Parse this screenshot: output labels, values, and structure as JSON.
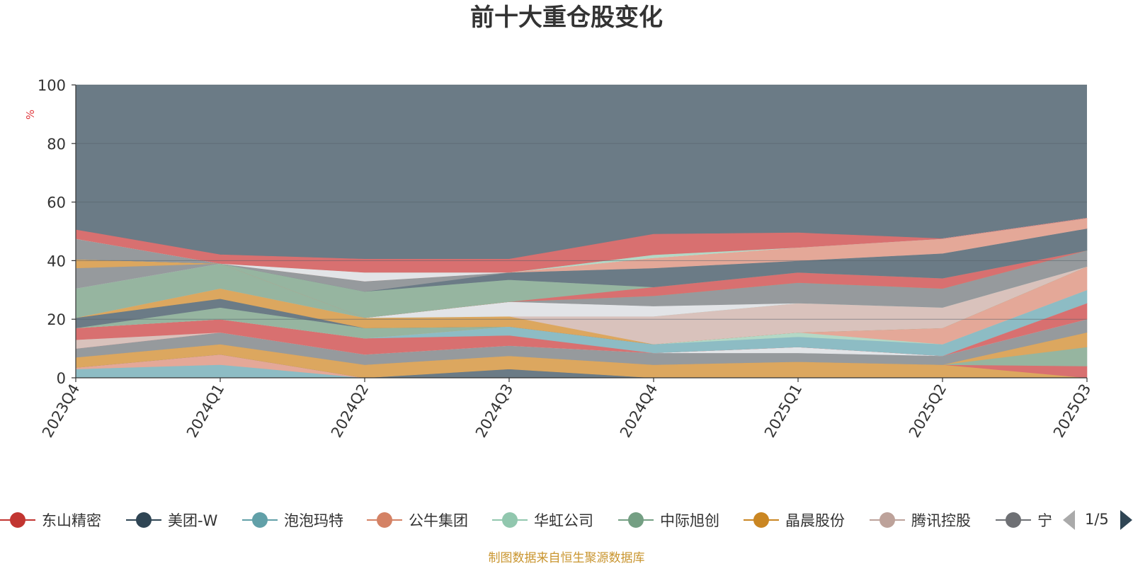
{
  "title": "前十大重仓股变化",
  "footer_source": "制图数据来自恒生聚源数据库",
  "legend_page": "1/5",
  "chart_data": {
    "type": "area",
    "stacked": true,
    "title": "前十大重仓股变化",
    "ylabel": "%",
    "ylim": [
      0,
      100
    ],
    "yticks": [
      0,
      20,
      40,
      60,
      80,
      100
    ],
    "grid": true,
    "legend_position": "bottom",
    "x": [
      "2023Q4",
      "2024Q1",
      "2024Q2",
      "2024Q3",
      "2024Q4",
      "2025Q1",
      "2025Q2",
      "2025Q3"
    ],
    "background_color": "#6b7b86",
    "legend": [
      {
        "name": "东山精密",
        "color": "#c23531"
      },
      {
        "name": "美团-W",
        "color": "#2f4554"
      },
      {
        "name": "泡泡玛特",
        "color": "#61a0a8"
      },
      {
        "name": "公牛集团",
        "color": "#d48265"
      },
      {
        "name": "华虹公司",
        "color": "#91c7ae"
      },
      {
        "name": "中际旭创",
        "color": "#749f83"
      },
      {
        "name": "晶晨股份",
        "color": "#ca8622"
      },
      {
        "name": "腾讯控股",
        "color": "#bda29a"
      },
      {
        "name": "宁",
        "color": "#6e7074"
      }
    ],
    "series": [
      {
        "color": "#8dbcc4",
        "values": [
          3,
          4.5,
          0,
          0,
          0,
          0,
          0,
          0
        ]
      },
      {
        "color": "#e4a898",
        "values": [
          0.5,
          3.5,
          0,
          0,
          0,
          0,
          0,
          0
        ]
      },
      {
        "color": "#6b7b86",
        "values": [
          0,
          0,
          0,
          3,
          0,
          0,
          0,
          0
        ]
      },
      {
        "color": "#dca75f",
        "values": [
          3.5,
          3.5,
          4.5,
          4.5,
          4.5,
          5.5,
          4.5,
          0
        ]
      },
      {
        "color": "#d87070",
        "values": [
          0,
          0,
          0,
          0,
          0,
          0,
          0,
          4
        ]
      },
      {
        "color": "#96b5a0",
        "values": [
          0,
          0,
          0,
          0,
          0,
          0,
          0,
          6.5
        ]
      },
      {
        "color": "#dca75f",
        "values": [
          0,
          0,
          0,
          0,
          0,
          0,
          0,
          5
        ]
      },
      {
        "color": "#969a9d",
        "values": [
          3,
          4,
          3.5,
          3.5,
          4,
          3,
          3,
          4.5
        ]
      },
      {
        "color": "#e2e4e7",
        "values": [
          0,
          0,
          0,
          0,
          0,
          2,
          0,
          0
        ]
      },
      {
        "color": "#d87070",
        "values": [
          0,
          0,
          0,
          0,
          0,
          0,
          0,
          5.5
        ]
      },
      {
        "color": "#d9c2bc",
        "values": [
          3,
          0,
          0,
          0,
          0,
          0,
          0,
          0
        ]
      },
      {
        "color": "#d87070",
        "values": [
          4,
          4.5,
          5.5,
          3.5,
          0,
          0,
          0,
          0
        ]
      },
      {
        "color": "#8dbcc4",
        "values": [
          0,
          0,
          0,
          3,
          3,
          3.5,
          4,
          4.5
        ]
      },
      {
        "color": "#b3d8c6",
        "values": [
          0,
          0,
          0,
          0,
          0,
          1.5,
          0,
          0
        ]
      },
      {
        "color": "#e4a898",
        "values": [
          0,
          0,
          0,
          0,
          0,
          0,
          5.5,
          8
        ]
      },
      {
        "color": "#96b5a0",
        "values": [
          0,
          4,
          3.5,
          0,
          0,
          0,
          0,
          0
        ]
      },
      {
        "color": "#6b7b86",
        "values": [
          3.5,
          3,
          0,
          0,
          0,
          0,
          0,
          0
        ]
      },
      {
        "color": "#dca75f",
        "values": [
          0,
          3.5,
          3.5,
          3.5,
          0,
          0,
          0,
          0
        ]
      },
      {
        "color": "#d9c2bc",
        "values": [
          0,
          0,
          0,
          0,
          9.5,
          10,
          7,
          0
        ]
      },
      {
        "color": "#96b5a0",
        "values": [
          10,
          8.5,
          0,
          0,
          0,
          0,
          0,
          0
        ]
      },
      {
        "color": "#e2e4e7",
        "values": [
          0,
          0,
          0,
          5,
          3.5,
          0,
          0,
          0
        ]
      },
      {
        "color": "#969a9d",
        "values": [
          7,
          0,
          0,
          0,
          3.5,
          7,
          6.5,
          5.5
        ]
      },
      {
        "color": "#dca75f",
        "values": [
          3,
          0,
          0,
          0,
          0,
          0,
          0,
          0
        ]
      },
      {
        "color": "#d87070",
        "values": [
          0,
          0,
          0,
          0,
          3,
          3.5,
          3.5,
          0
        ]
      },
      {
        "color": "#96b5a0",
        "values": [
          0,
          0,
          9,
          7.5,
          0,
          0,
          0,
          0
        ]
      },
      {
        "color": "#6b7b86",
        "values": [
          0,
          0,
          0,
          2.5,
          6.5,
          4,
          8.5,
          7.5
        ]
      },
      {
        "color": "#969a9d",
        "values": [
          7,
          0,
          3.5,
          0,
          0,
          0,
          0,
          0
        ]
      },
      {
        "color": "#e4a898",
        "values": [
          0,
          0,
          0,
          0,
          3.5,
          4.5,
          5,
          3.5
        ]
      },
      {
        "color": "#e2e4e7",
        "values": [
          0,
          0,
          3,
          0,
          0,
          0,
          0,
          0
        ]
      },
      {
        "color": "#b3d8c6",
        "values": [
          0,
          0,
          0,
          0,
          1,
          0,
          0,
          0
        ]
      },
      {
        "color": "#d87070",
        "values": [
          3,
          3,
          4.5,
          4.5,
          7,
          5,
          0,
          0
        ]
      }
    ]
  }
}
